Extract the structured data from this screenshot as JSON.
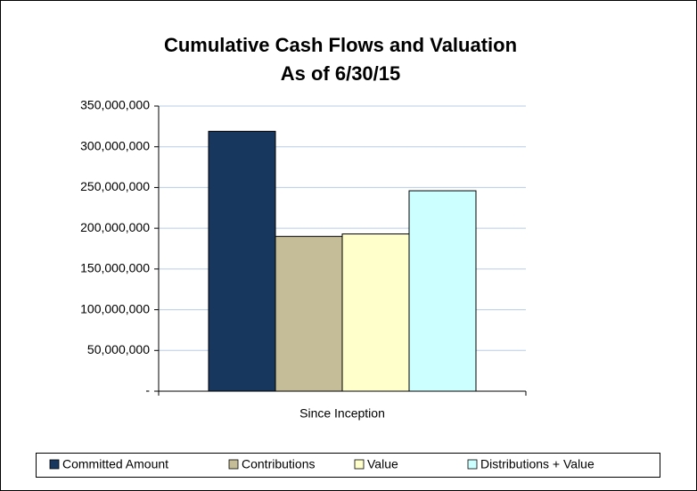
{
  "chart_data": {
    "type": "bar",
    "title": "Cumulative Cash Flows and Valuation",
    "subtitle": "As of 6/30/15",
    "categories": [
      "Since Inception"
    ],
    "series": [
      {
        "name": "Committed Amount",
        "color": "#17375e",
        "values": [
          319000000
        ]
      },
      {
        "name": "Contributions",
        "color": "#c4bd97",
        "values": [
          190000000
        ]
      },
      {
        "name": "Value",
        "color": "#ffffcc",
        "values": [
          193000000
        ]
      },
      {
        "name": "Distributions + Value",
        "color": "#ccffff",
        "values": [
          246000000
        ]
      }
    ],
    "ylim": [
      0,
      350000000
    ],
    "yticks": [
      {
        "value": 0,
        "label": "-"
      },
      {
        "value": 50000000,
        "label": "50,000,000"
      },
      {
        "value": 100000000,
        "label": "100,000,000"
      },
      {
        "value": 150000000,
        "label": "150,000,000"
      },
      {
        "value": 200000000,
        "label": "200,000,000"
      },
      {
        "value": 250000000,
        "label": "250,000,000"
      },
      {
        "value": 300000000,
        "label": "300,000,000"
      },
      {
        "value": 350000000,
        "label": "350,000,000"
      }
    ],
    "grid": true,
    "legend": "bottom"
  }
}
